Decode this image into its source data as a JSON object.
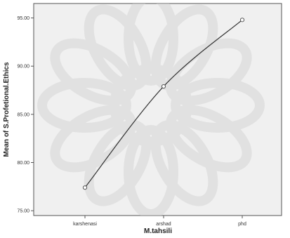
{
  "chart_data": {
    "type": "line",
    "xlabel": "M.tahsili",
    "ylabel": "Mean of S.Profetional.Ethics",
    "categories": [
      "karshenasi",
      "arshad",
      "phd"
    ],
    "series": [
      {
        "values": [
          77.4,
          87.9,
          94.8
        ]
      }
    ],
    "ylim": [
      74.5,
      96.5
    ],
    "yticks": [
      "75.00",
      "80.00",
      "85.00",
      "90.00",
      "95.00"
    ],
    "grid": false,
    "colors": {
      "plot_background": "#f0f0f0",
      "line": "#333333",
      "marker_stroke": "#555555"
    }
  }
}
